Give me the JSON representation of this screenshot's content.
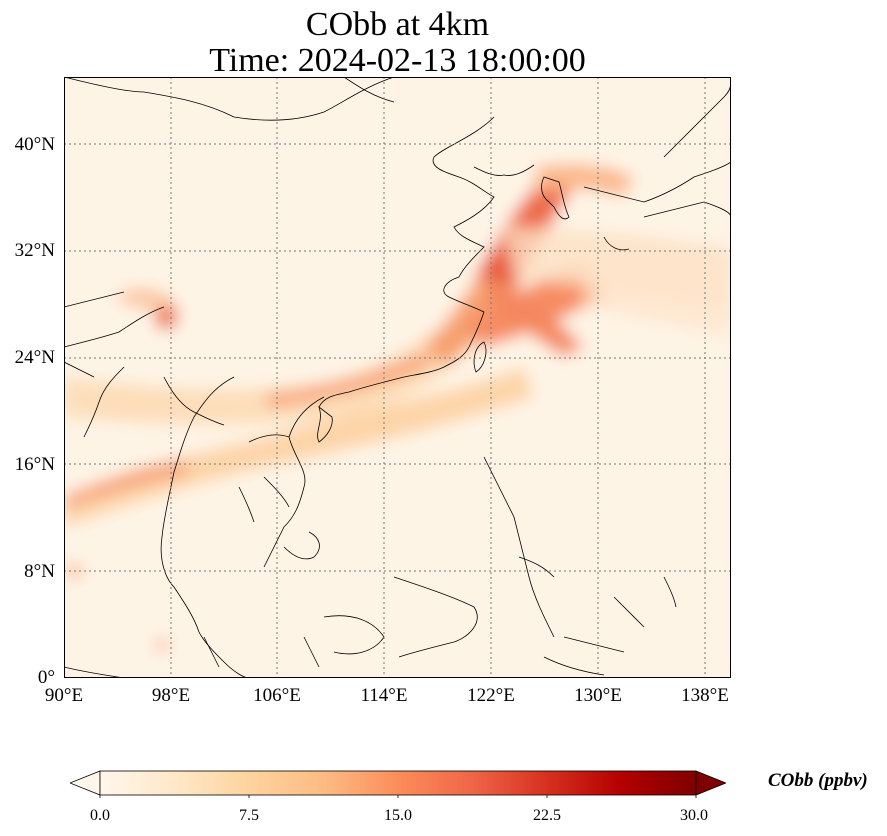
{
  "title_line1": "CObb at 4km",
  "title_line2": "Time: 2024-02-13 18:00:00",
  "x_tick_labels": [
    "90°E",
    "98°E",
    "106°E",
    "114°E",
    "122°E",
    "130°E",
    "138°E"
  ],
  "y_tick_labels": [
    "0°",
    "8°N",
    "16°N",
    "24°N",
    "32°N",
    "40°N"
  ],
  "colorbar": {
    "label": "CObb (ppbv)",
    "tick_labels": [
      "0.0",
      "7.5",
      "15.0",
      "22.5",
      "30.0"
    ],
    "min": 0,
    "max": 30,
    "colormap": "OrRd",
    "colors": [
      "#fff7ec",
      "#fee8c8",
      "#fdd49e",
      "#fdbb84",
      "#fc8d59",
      "#ef6548",
      "#d7301f",
      "#b30000",
      "#7f0000"
    ],
    "extend": "both"
  },
  "map": {
    "lon_range": [
      90,
      140
    ],
    "lat_range": [
      0,
      45
    ],
    "gridline_style": "dotted",
    "background_color": "#fdf1e0"
  }
}
